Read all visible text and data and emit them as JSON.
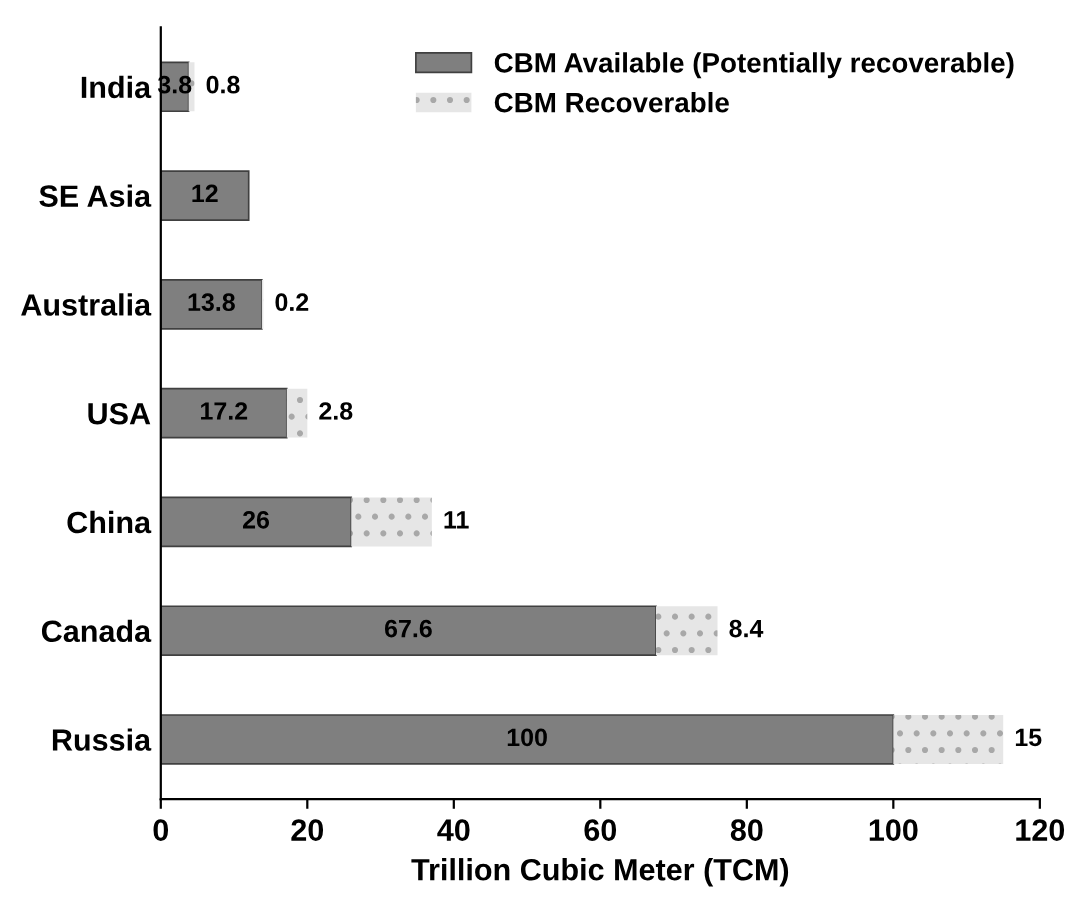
{
  "chart_data": {
    "type": "bar",
    "orientation": "horizontal",
    "stacked": true,
    "xlabel": "Trillion Cubic Meter (TCM)",
    "categories": [
      "India",
      "SE Asia",
      "Australia",
      "USA",
      "China",
      "Canada",
      "Russia"
    ],
    "series": [
      {
        "name": "CBM Available (Potentially recoverable)",
        "color": "#7f7f7f",
        "values": [
          3.8,
          12,
          13.8,
          17.2,
          26,
          67.6,
          100
        ]
      },
      {
        "name": "CBM Recoverable",
        "color": "#e6e6e6",
        "values": [
          0.8,
          null,
          0.2,
          2.8,
          11,
          8.4,
          15
        ]
      }
    ],
    "xlim": [
      0,
      120
    ],
    "xticks": [
      0,
      20,
      40,
      60,
      80,
      100,
      120
    ],
    "grid": false,
    "legend": "top right",
    "data_labels": true
  }
}
